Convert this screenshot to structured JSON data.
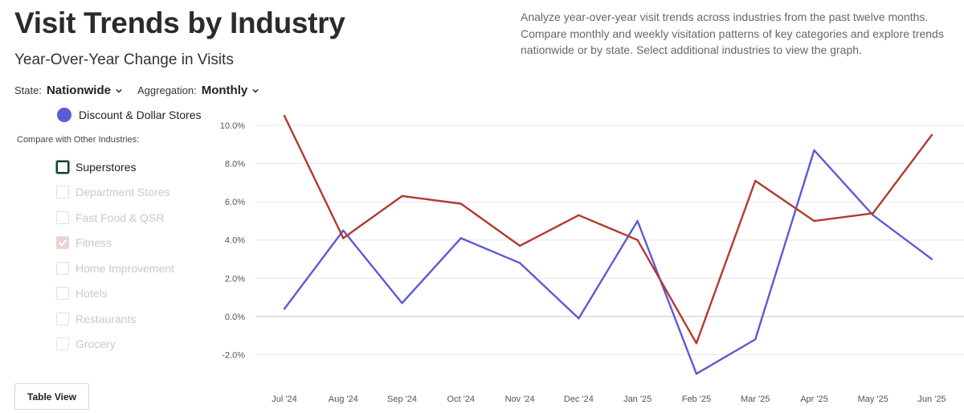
{
  "header": {
    "title": "Visit Trends by Industry",
    "subtitle": "Year-Over-Year Change in Visits",
    "description": "Analyze year-over-year visit trends across industries from the past twelve months. Compare monthly and weekly visitation patterns of key categories and explore trends nationwide or by state. Select additional industries to view the graph."
  },
  "controls": {
    "state_label": "State:",
    "state_value": "Nationwide",
    "aggregation_label": "Aggregation:",
    "aggregation_value": "Monthly"
  },
  "primary": {
    "label": "Discount & Dollar Stores",
    "color": "#5b5bd6"
  },
  "compare": {
    "label": "Compare with Other Industries:",
    "items": [
      {
        "label": "Superstores",
        "state": "selected"
      },
      {
        "label": "Department Stores",
        "state": "unchecked"
      },
      {
        "label": "Fast Food & QSR",
        "state": "unchecked"
      },
      {
        "label": "Fitness",
        "state": "checked"
      },
      {
        "label": "Home Improvement",
        "state": "unchecked"
      },
      {
        "label": "Hotels",
        "state": "unchecked"
      },
      {
        "label": "Restaurants",
        "state": "unchecked"
      },
      {
        "label": "Grocery",
        "state": "unchecked-blue"
      }
    ]
  },
  "buttons": {
    "table_view": "Table View"
  },
  "chart_data": {
    "type": "line",
    "categories": [
      "Jul '24",
      "Aug '24",
      "Sep '24",
      "Oct '24",
      "Nov '24",
      "Dec '24",
      "Jan '25",
      "Feb '25",
      "Mar '25",
      "Apr '25",
      "May '25",
      "Jun '25"
    ],
    "series": [
      {
        "name": "Discount & Dollar Stores",
        "color": "#5b5bd6",
        "values": [
          0.4,
          4.5,
          0.7,
          4.1,
          2.8,
          -0.1,
          5.0,
          -3.0,
          -1.2,
          8.7,
          5.3,
          3.0
        ]
      },
      {
        "name": "Superstores",
        "color": "#b23a2e",
        "values": [
          10.5,
          4.1,
          6.3,
          5.9,
          3.7,
          5.3,
          4.0,
          -1.4,
          7.1,
          5.0,
          5.4,
          9.5
        ]
      }
    ],
    "yticks": [
      "-2.0%",
      "0.0%",
      "2.0%",
      "4.0%",
      "6.0%",
      "8.0%",
      "10.0%"
    ],
    "ytick_values": [
      -2,
      0,
      2,
      4,
      6,
      8,
      10
    ],
    "ylim": [
      -3.2,
      10.8
    ],
    "grid": true
  }
}
